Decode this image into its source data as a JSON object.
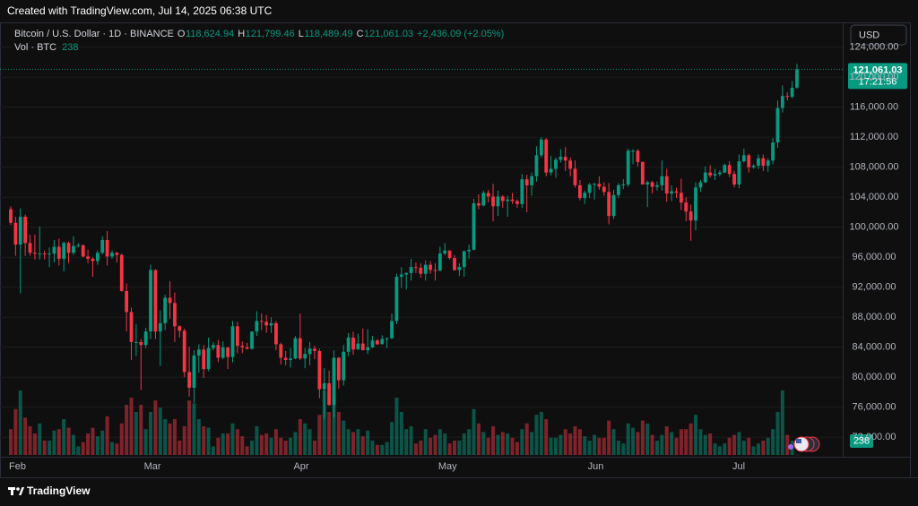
{
  "header": {
    "created": "Created with TradingView.com, Jul 14, 2025 06:38 UTC"
  },
  "toolbar": {
    "currency": "USD"
  },
  "footer": {
    "brand": "TradingView"
  },
  "chart_data": {
    "type": "candlestick",
    "symbol": "Bitcoin / U.S. Dollar · 1D · BINANCE",
    "ohlc_legend": [
      {
        "key": "O",
        "label": "118,624.94"
      },
      {
        "key": "H",
        "label": "121,799.46"
      },
      {
        "key": "L",
        "label": "118,489.49"
      },
      {
        "key": "C",
        "label": "121,061.03"
      }
    ],
    "change_label": "+2,436.09 (+2.05%)",
    "volume_title": "Vol · BTC",
    "last_price_label": "121,061.03",
    "countdown": "17:21:56",
    "up_color": "#089981",
    "down_color": "#f23645",
    "grid": true,
    "ylim": [
      69400,
      127200
    ],
    "yticks": [
      {
        "value": 72000,
        "label": "72,000.00"
      },
      {
        "value": 76000,
        "label": "76,000.00"
      },
      {
        "value": 80000,
        "label": "80,000.00"
      },
      {
        "value": 84000,
        "label": "84,000.00"
      },
      {
        "value": 88000,
        "label": "88,000.00"
      },
      {
        "value": 92000,
        "label": "92,000.00"
      },
      {
        "value": 96000,
        "label": "96,000.00"
      },
      {
        "value": 100000,
        "label": "100,000.00"
      },
      {
        "value": 104000,
        "label": "104,000.00"
      },
      {
        "value": 108000,
        "label": "108,000.00"
      },
      {
        "value": 112000,
        "label": "112,000.00"
      },
      {
        "value": 116000,
        "label": "116,000.00"
      },
      {
        "value": 120000,
        "label": "120,000.00"
      },
      {
        "value": 124000,
        "label": "124,000.00"
      }
    ],
    "volume_lim": [
      0,
      60000
    ],
    "categories": [
      "Feb",
      null,
      null,
      null,
      null,
      null,
      null,
      null,
      null,
      null,
      null,
      null,
      null,
      null,
      null,
      null,
      null,
      null,
      null,
      null,
      null,
      null,
      null,
      null,
      null,
      null,
      null,
      null,
      "Mar",
      null,
      null,
      null,
      null,
      null,
      null,
      null,
      null,
      null,
      null,
      null,
      null,
      null,
      null,
      null,
      null,
      null,
      null,
      null,
      null,
      null,
      null,
      null,
      null,
      null,
      null,
      null,
      null,
      null,
      null,
      "Apr",
      null,
      null,
      null,
      null,
      null,
      null,
      null,
      null,
      null,
      null,
      null,
      null,
      null,
      null,
      null,
      null,
      null,
      null,
      null,
      null,
      null,
      null,
      null,
      null,
      null,
      null,
      null,
      null,
      null,
      "May",
      null,
      null,
      null,
      null,
      null,
      null,
      null,
      null,
      null,
      null,
      null,
      null,
      null,
      null,
      null,
      null,
      null,
      null,
      null,
      null,
      null,
      null,
      null,
      null,
      null,
      null,
      null,
      null,
      null,
      null,
      "Jun",
      null,
      null,
      null,
      null,
      null,
      null,
      null,
      null,
      null,
      null,
      null,
      null,
      null,
      null,
      null,
      null,
      null,
      null,
      null,
      null,
      null,
      null,
      null,
      null,
      null,
      null,
      null,
      null,
      null,
      "Jul",
      null,
      null,
      null,
      null,
      null,
      null,
      null,
      null,
      null,
      null,
      null,
      null,
      null
    ],
    "ohlc": [
      [
        102400,
        102800,
        100300,
        100600
      ],
      [
        100600,
        101400,
        96200,
        97700
      ],
      [
        97700,
        102500,
        91200,
        101400
      ],
      [
        101400,
        101700,
        96200,
        97900
      ],
      [
        97900,
        99000,
        96200,
        96600
      ],
      [
        96600,
        99000,
        95700,
        96500
      ],
      [
        96500,
        100100,
        95700,
        96500
      ],
      [
        96500,
        96900,
        95700,
        96400
      ],
      [
        96400,
        97300,
        94700,
        96500
      ],
      [
        96500,
        98300,
        95300,
        97400
      ],
      [
        97400,
        98500,
        94900,
        95800
      ],
      [
        95800,
        98100,
        94100,
        97900
      ],
      [
        97900,
        98100,
        95200,
        96600
      ],
      [
        96600,
        98800,
        96300,
        97500
      ],
      [
        97500,
        97900,
        97300,
        97600
      ],
      [
        97600,
        97700,
        96000,
        96100
      ],
      [
        96100,
        97000,
        95200,
        95800
      ],
      [
        95800,
        96000,
        93400,
        95500
      ],
      [
        95500,
        96900,
        95000,
        96600
      ],
      [
        96600,
        98800,
        96400,
        98300
      ],
      [
        98300,
        99500,
        94900,
        96100
      ],
      [
        96100,
        96900,
        95800,
        96600
      ],
      [
        96600,
        96700,
        95300,
        96300
      ],
      [
        96300,
        96500,
        91400,
        91500
      ],
      [
        91500,
        92500,
        86100,
        88700
      ],
      [
        88700,
        89300,
        82300,
        84700
      ],
      [
        84700,
        87100,
        82800,
        84700
      ],
      [
        84700,
        85100,
        78300,
        84300
      ],
      [
        84300,
        86600,
        83900,
        86100
      ],
      [
        86100,
        95000,
        85100,
        94300
      ],
      [
        94300,
        94400,
        85100,
        86100
      ],
      [
        86100,
        88900,
        81500,
        87200
      ],
      [
        87200,
        91000,
        86300,
        90600
      ],
      [
        90600,
        92800,
        87800,
        89900
      ],
      [
        89900,
        91300,
        84700,
        86800
      ],
      [
        86800,
        86900,
        85300,
        86200
      ],
      [
        86200,
        86500,
        80000,
        80700
      ],
      [
        80700,
        84100,
        77400,
        78600
      ],
      [
        78600,
        83600,
        76600,
        82900
      ],
      [
        82900,
        84400,
        80600,
        83700
      ],
      [
        83700,
        84300,
        79900,
        81100
      ],
      [
        81100,
        85300,
        80800,
        83900
      ],
      [
        83900,
        84700,
        83600,
        84300
      ],
      [
        84300,
        85000,
        82000,
        82600
      ],
      [
        82600,
        84800,
        82400,
        84000
      ],
      [
        84000,
        84000,
        81100,
        82700
      ],
      [
        82700,
        87500,
        82000,
        86800
      ],
      [
        86800,
        87400,
        83200,
        84200
      ],
      [
        84200,
        84800,
        83200,
        84000
      ],
      [
        84000,
        84600,
        83700,
        83800
      ],
      [
        83800,
        86100,
        83700,
        86100
      ],
      [
        86100,
        88800,
        85500,
        87500
      ],
      [
        87500,
        88500,
        86300,
        87400
      ],
      [
        87400,
        88300,
        85900,
        86900
      ],
      [
        86900,
        88000,
        85900,
        87200
      ],
      [
        87200,
        87500,
        83600,
        84400
      ],
      [
        84400,
        84600,
        81700,
        82600
      ],
      [
        82600,
        83500,
        81600,
        82300
      ],
      [
        82300,
        83900,
        81300,
        82500
      ],
      [
        82500,
        85500,
        82400,
        85200
      ],
      [
        85200,
        88500,
        82300,
        82500
      ],
      [
        82500,
        83900,
        81200,
        83100
      ],
      [
        83100,
        84700,
        81600,
        83800
      ],
      [
        83800,
        84200,
        82400,
        83500
      ],
      [
        83500,
        83800,
        77200,
        78400
      ],
      [
        78400,
        81200,
        74500,
        79200
      ],
      [
        79200,
        80900,
        76200,
        76300
      ],
      [
        76300,
        83600,
        74600,
        82600
      ],
      [
        82600,
        82700,
        78500,
        79600
      ],
      [
        79600,
        84300,
        78900,
        83400
      ],
      [
        83400,
        85900,
        82800,
        85300
      ],
      [
        85300,
        86100,
        83000,
        83700
      ],
      [
        83700,
        85800,
        83700,
        84500
      ],
      [
        84500,
        86500,
        83600,
        83600
      ],
      [
        83600,
        86400,
        83100,
        84000
      ],
      [
        84000,
        85500,
        83900,
        84900
      ],
      [
        84900,
        85100,
        84300,
        84400
      ],
      [
        84400,
        85600,
        84400,
        85100
      ],
      [
        85100,
        85300,
        83900,
        85200
      ],
      [
        85200,
        88500,
        85100,
        87500
      ],
      [
        87500,
        93800,
        87100,
        93400
      ],
      [
        93400,
        94700,
        91900,
        93700
      ],
      [
        93700,
        94000,
        91700,
        93900
      ],
      [
        93900,
        95800,
        92900,
        94700
      ],
      [
        94700,
        95300,
        93900,
        94600
      ],
      [
        94600,
        95200,
        93300,
        93800
      ],
      [
        93800,
        95600,
        92900,
        95000
      ],
      [
        95000,
        95500,
        93800,
        94300
      ],
      [
        94300,
        95200,
        92900,
        94200
      ],
      [
        94200,
        97400,
        94200,
        96500
      ],
      [
        96500,
        97900,
        96300,
        96900
      ],
      [
        96900,
        96900,
        95700,
        95900
      ],
      [
        95900,
        96300,
        94200,
        94300
      ],
      [
        94300,
        95200,
        93500,
        94700
      ],
      [
        94700,
        96900,
        93400,
        96800
      ],
      [
        96800,
        97700,
        95800,
        97000
      ],
      [
        97000,
        103800,
        96900,
        103200
      ],
      [
        103200,
        104400,
        102400,
        102900
      ],
      [
        102900,
        104900,
        102800,
        104600
      ],
      [
        104600,
        105000,
        103300,
        104100
      ],
      [
        104100,
        105800,
        100800,
        102800
      ],
      [
        102800,
        104900,
        101500,
        104100
      ],
      [
        104100,
        104300,
        102600,
        103500
      ],
      [
        103500,
        104200,
        101400,
        103700
      ],
      [
        103700,
        104600,
        103100,
        103500
      ],
      [
        103500,
        103700,
        102600,
        103100
      ],
      [
        103100,
        107100,
        102600,
        106400
      ],
      [
        106400,
        107000,
        102000,
        105600
      ],
      [
        105600,
        107300,
        104200,
        106800
      ],
      [
        106800,
        110800,
        106100,
        109600
      ],
      [
        109600,
        112000,
        109300,
        111700
      ],
      [
        111700,
        111900,
        106800,
        107300
      ],
      [
        107300,
        109500,
        106900,
        107800
      ],
      [
        107800,
        109300,
        106600,
        109000
      ],
      [
        109000,
        110400,
        108600,
        109400
      ],
      [
        109400,
        110700,
        107500,
        108900
      ],
      [
        108900,
        109300,
        106800,
        107800
      ],
      [
        107800,
        108900,
        105300,
        105600
      ],
      [
        105600,
        106300,
        103600,
        103900
      ],
      [
        103900,
        104900,
        103100,
        104600
      ],
      [
        104600,
        105900,
        103900,
        105700
      ],
      [
        105700,
        105900,
        103700,
        105800
      ],
      [
        105800,
        106800,
        105000,
        105400
      ],
      [
        105400,
        106000,
        104200,
        104700
      ],
      [
        104700,
        105900,
        100400,
        101500
      ],
      [
        101500,
        105000,
        101100,
        104300
      ],
      [
        104300,
        105900,
        103900,
        105600
      ],
      [
        105600,
        106400,
        105100,
        105700
      ],
      [
        105700,
        110500,
        105400,
        110200
      ],
      [
        110200,
        110400,
        108400,
        110200
      ],
      [
        110200,
        110400,
        108100,
        108700
      ],
      [
        108700,
        108800,
        105700,
        105700
      ],
      [
        105700,
        106200,
        102700,
        106000
      ],
      [
        106000,
        106200,
        104500,
        105400
      ],
      [
        105400,
        106100,
        104900,
        105600
      ],
      [
        105600,
        108900,
        104900,
        106800
      ],
      [
        106800,
        107800,
        103400,
        104500
      ],
      [
        104500,
        105600,
        103500,
        104800
      ],
      [
        104800,
        105300,
        103900,
        104600
      ],
      [
        104600,
        106500,
        102300,
        103300
      ],
      [
        103300,
        104000,
        100800,
        102100
      ],
      [
        102100,
        103000,
        98200,
        100900
      ],
      [
        100900,
        106000,
        99600,
        105300
      ],
      [
        105300,
        106300,
        104700,
        106000
      ],
      [
        106000,
        108100,
        105900,
        107300
      ],
      [
        107300,
        108300,
        106600,
        106900
      ],
      [
        106900,
        107800,
        106300,
        107100
      ],
      [
        107100,
        107600,
        106800,
        107300
      ],
      [
        107300,
        108500,
        107200,
        108300
      ],
      [
        108300,
        108800,
        106700,
        107100
      ],
      [
        107100,
        107500,
        105300,
        105700
      ],
      [
        105700,
        109700,
        105200,
        108800
      ],
      [
        108800,
        110500,
        108600,
        109600
      ],
      [
        109600,
        109800,
        107300,
        108000
      ],
      [
        108000,
        108400,
        107800,
        108200
      ],
      [
        108200,
        109700,
        107800,
        109200
      ],
      [
        109200,
        109700,
        107500,
        108200
      ],
      [
        108200,
        109200,
        107400,
        108900
      ],
      [
        108900,
        111900,
        108400,
        111300
      ],
      [
        111300,
        116900,
        110600,
        115900
      ],
      [
        115900,
        118900,
        115300,
        117500
      ],
      [
        117500,
        118000,
        116900,
        117400
      ],
      [
        117400,
        119500,
        117200,
        118600
      ],
      [
        118624.94,
        121799.46,
        118489.49,
        121061.03
      ]
    ],
    "volume": [
      18000,
      32000,
      45000,
      26000,
      20000,
      15000,
      22000,
      10000,
      10000,
      17000,
      18000,
      25000,
      19000,
      14000,
      6000,
      9000,
      15000,
      19000,
      13000,
      17000,
      27000,
      9000,
      8000,
      22000,
      35000,
      40000,
      30000,
      35000,
      18000,
      30000,
      38000,
      33000,
      25000,
      22000,
      25000,
      10000,
      20000,
      38000,
      36000,
      25000,
      20000,
      19000,
      6000,
      12000,
      15000,
      15000,
      22000,
      18000,
      13000,
      6000,
      10000,
      20000,
      14000,
      15000,
      12000,
      18000,
      12000,
      10000,
      12000,
      16000,
      25000,
      22000,
      18000,
      10000,
      28000,
      45000,
      30000,
      40000,
      30000,
      24000,
      18000,
      16000,
      18000,
      13000,
      17000,
      10000,
      7000,
      7000,
      9000,
      23000,
      40000,
      30000,
      18000,
      20000,
      8000,
      10000,
      18000,
      12000,
      14000,
      18000,
      15000,
      8000,
      10000,
      10000,
      15000,
      18000,
      32000,
      22000,
      16000,
      12000,
      20000,
      14000,
      16000,
      15000,
      12000,
      9000,
      18000,
      22000,
      16000,
      28000,
      30000,
      25000,
      12000,
      12000,
      14000,
      18000,
      15000,
      20000,
      18000,
      13000,
      10000,
      14000,
      12000,
      12000,
      24000,
      18000,
      10000,
      8000,
      22000,
      19000,
      16000,
      24000,
      22000,
      14000,
      10000,
      14000,
      20000,
      16000,
      12000,
      18000,
      18000,
      22000,
      28000,
      18000,
      14000,
      15000,
      8000,
      6000,
      8000,
      12000,
      14000,
      16000,
      10000,
      12000,
      6000,
      8000,
      10000,
      12000,
      18000,
      30000,
      45000,
      14000,
      10000,
      238
    ]
  }
}
